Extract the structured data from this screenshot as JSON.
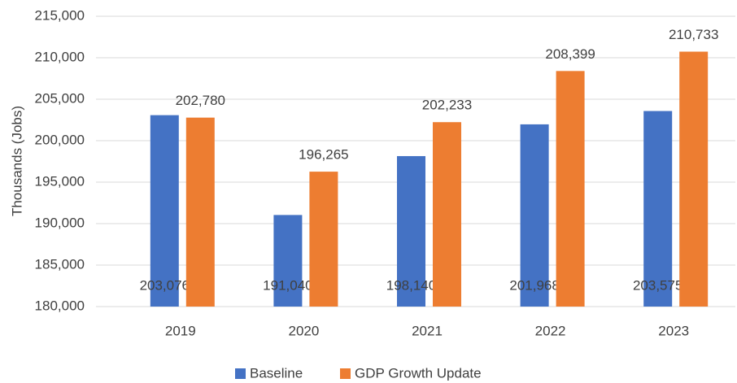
{
  "chart_data": {
    "type": "bar",
    "y_label": "Thousands (Jobs)",
    "categories": [
      "2019",
      "2020",
      "2021",
      "2022",
      "2023"
    ],
    "series": [
      {
        "name": "Baseline",
        "color": "#4472c4",
        "values": [
          203076,
          191040,
          198140,
          201968,
          203575
        ],
        "value_labels": [
          "203,076",
          "191,040",
          "198,140",
          "201,968",
          "203,575"
        ]
      },
      {
        "name": "GDP Growth Update",
        "color": "#ed7d31",
        "values": [
          202780,
          196265,
          202233,
          208399,
          210733
        ],
        "value_labels": [
          "202,780",
          "196,265",
          "202,233",
          "208,399",
          "210,733"
        ]
      }
    ],
    "ylim": [
      180000,
      215000
    ],
    "yticks": [
      {
        "value": 180000,
        "label": "180,000"
      },
      {
        "value": 185000,
        "label": "185,000"
      },
      {
        "value": 190000,
        "label": "190,000"
      },
      {
        "value": 195000,
        "label": "195,000"
      },
      {
        "value": 200000,
        "label": "200,000"
      },
      {
        "value": 205000,
        "label": "205,000"
      },
      {
        "value": 210000,
        "label": "210,000"
      },
      {
        "value": 215000,
        "label": "215,000"
      }
    ],
    "grid": true,
    "legend": "bottom"
  }
}
